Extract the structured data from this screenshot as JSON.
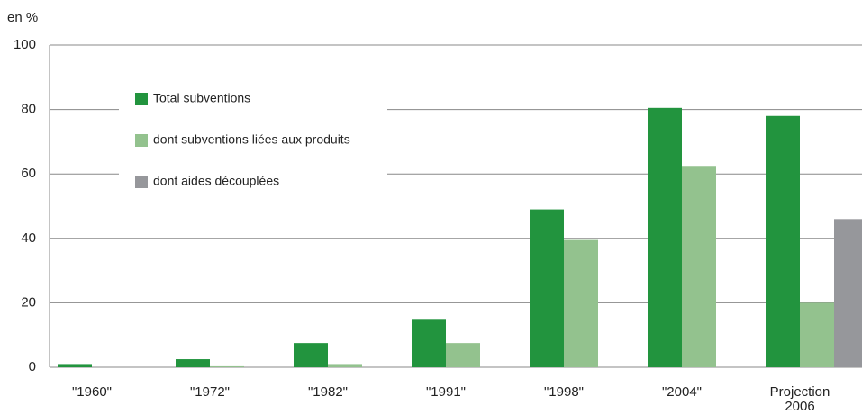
{
  "chart_data": {
    "type": "bar",
    "y_label": "en %",
    "categories": [
      "\"1960\"",
      "\"1972\"",
      "\"1982\"",
      "\"1991\"",
      "\"1998\"",
      "\"2004\"",
      "Projection 2006"
    ],
    "series": [
      {
        "name": "Total subventions",
        "color": "#22943e",
        "values": [
          1,
          2.5,
          7.5,
          15,
          49,
          80.5,
          78
        ]
      },
      {
        "name": "dont subventions liées aux produits",
        "color": "#93c28e",
        "values": [
          0,
          0.3,
          1,
          7.5,
          39.5,
          62.5,
          20
        ]
      },
      {
        "name": "dont aides découplées",
        "color": "#96979b",
        "values": [
          null,
          null,
          null,
          null,
          null,
          null,
          46
        ]
      }
    ],
    "ylim": [
      0,
      100
    ],
    "yticks": [
      0,
      20,
      40,
      60,
      80,
      100
    ],
    "grid": true,
    "legend": "upper left"
  }
}
